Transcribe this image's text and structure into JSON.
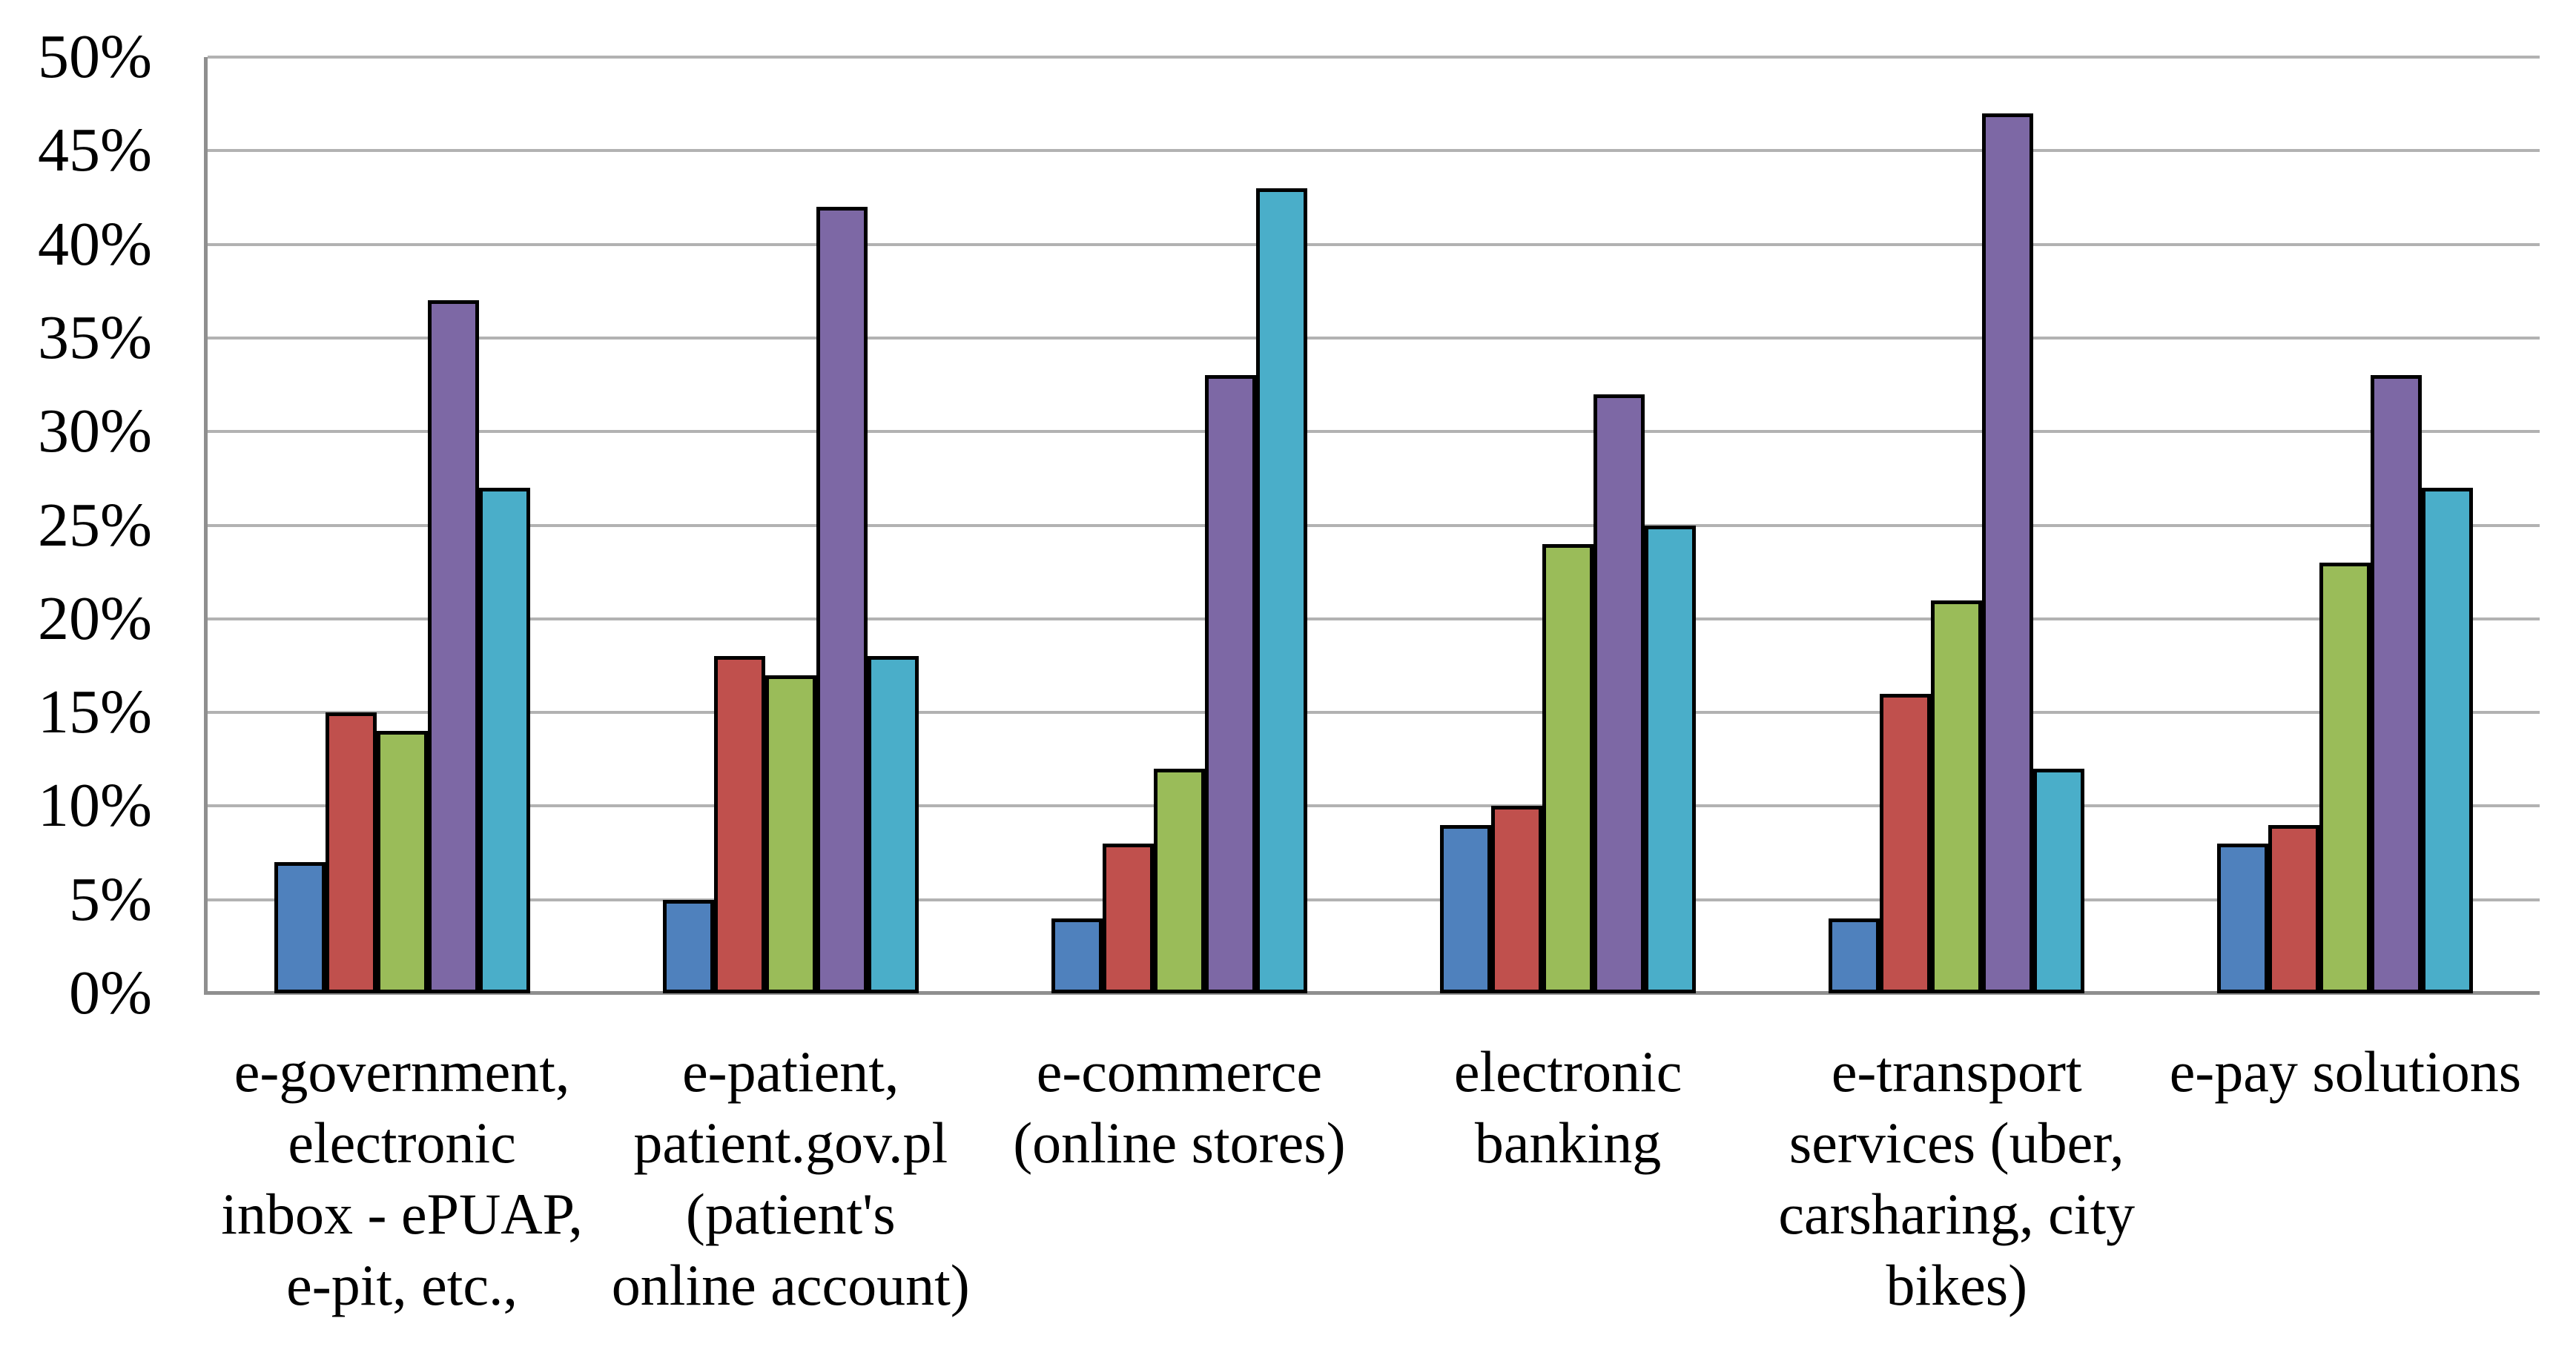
{
  "chart_data": {
    "type": "bar",
    "title": "",
    "xlabel": "",
    "ylabel": "",
    "ylim": [
      0,
      50
    ],
    "y_tick_step": 5,
    "y_tick_labels": [
      "0%",
      "5%",
      "10%",
      "15%",
      "20%",
      "25%",
      "30%",
      "35%",
      "40%",
      "45%",
      "50%"
    ],
    "grid": true,
    "legend": "none",
    "categories": [
      "e-government, electronic inbox - ePUAP, e-pit, etc.,",
      "e-patient, patient.gov.pl (patient's online account)",
      "e-commerce (online stores)",
      "electronic banking",
      "e-transport services (uber, carsharing, city bikes)",
      "e-pay solutions"
    ],
    "categories_lines": [
      [
        "e-government,",
        "electronic",
        "inbox - ePUAP,",
        "e-pit, etc.,"
      ],
      [
        "e-patient,",
        "patient.gov.pl",
        "(patient's",
        "online account)"
      ],
      [
        "e-commerce",
        "(online stores)"
      ],
      [
        "electronic",
        "banking"
      ],
      [
        "e-transport",
        "services (uber,",
        "carsharing, city",
        "bikes)"
      ],
      [
        "e-pay solutions"
      ]
    ],
    "series": [
      {
        "color": "#4F81BD",
        "values": [
          7,
          5,
          4,
          9,
          4,
          8
        ]
      },
      {
        "color": "#C0504D",
        "values": [
          15,
          18,
          8,
          10,
          16,
          9
        ]
      },
      {
        "color": "#9ABC59",
        "values": [
          14,
          17,
          12,
          24,
          21,
          23
        ]
      },
      {
        "color": "#7D68A5",
        "values": [
          37,
          42,
          33,
          32,
          47,
          33
        ]
      },
      {
        "color": "#4AAEC9",
        "values": [
          27,
          18,
          43,
          25,
          12,
          27
        ]
      }
    ]
  },
  "styles": {
    "gridline_color": "#b2b2b2",
    "axis_color": "#8f8f8f",
    "bar_border_color": "#000000",
    "background_color": "#ffffff",
    "text_color": "#000000"
  }
}
